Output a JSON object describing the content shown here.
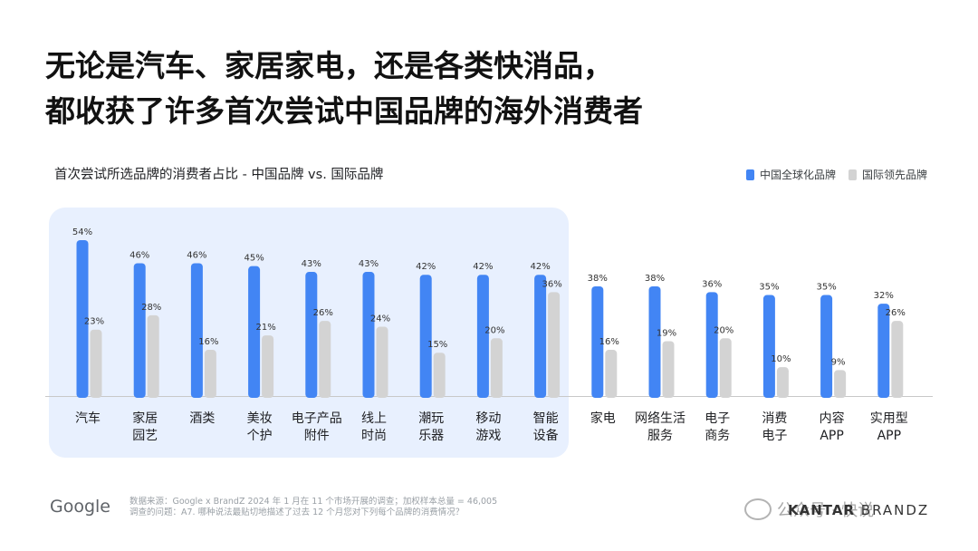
{
  "headline": {
    "line1": "无论是汽车、家居家电，还是各类快消品，",
    "line2": "都收获了许多首次尝试中国品牌的海外消费者"
  },
  "legend": {
    "chinese": "中国全球化品牌",
    "international": "国际领先品牌"
  },
  "colors": {
    "chinese": "#4285f4",
    "international": "#d3d3d3",
    "highlight": "#e8f0fe"
  },
  "chart_data": {
    "type": "bar",
    "title": "首次尝试所选品牌的消费者占比 - 中国品牌 vs. 国际品牌",
    "categories": [
      [
        "汽车"
      ],
      [
        "家居",
        "园艺"
      ],
      [
        "酒类"
      ],
      [
        "美妆",
        "个护"
      ],
      [
        "电子产品",
        "附件"
      ],
      [
        "线上",
        "时尚"
      ],
      [
        "潮玩",
        "乐器"
      ],
      [
        "移动",
        "游戏"
      ],
      [
        "智能",
        "设备"
      ],
      [
        "家电"
      ],
      [
        "网络生活",
        "服务"
      ],
      [
        "电子",
        "商务"
      ],
      [
        "消费",
        "电子"
      ],
      [
        "内容",
        "APP"
      ],
      [
        "实用型",
        "APP"
      ]
    ],
    "series": [
      {
        "name": "中国全球化品牌",
        "values": [
          54,
          46,
          46,
          45,
          43,
          43,
          42,
          42,
          42,
          38,
          38,
          36,
          35,
          35,
          32
        ]
      },
      {
        "name": "国际领先品牌",
        "values": [
          23,
          28,
          16,
          21,
          26,
          24,
          15,
          20,
          36,
          16,
          19,
          20,
          10,
          9,
          26
        ]
      }
    ],
    "value_suffix": "%",
    "highlighted_categories": 9,
    "ylim": [
      0,
      54
    ],
    "grid": false,
    "legend_position": "top-right"
  },
  "footer": {
    "logo": "Google",
    "source_line1": "数据来源：Google x BrandZ 2024 年 1 月在 11 个市场开展的调查；加权样本总量 = 46,005",
    "source_line2": "调查的问题：A7. 哪种说法最贴切地描述了过去 12 个月您对下列每个品牌的消费情况？",
    "brand": "KANTAR BRANDZ",
    "brand_bold": "KANTAR",
    "brand_rest": " BRANDZ",
    "watermark": "公众号 · 快说"
  }
}
